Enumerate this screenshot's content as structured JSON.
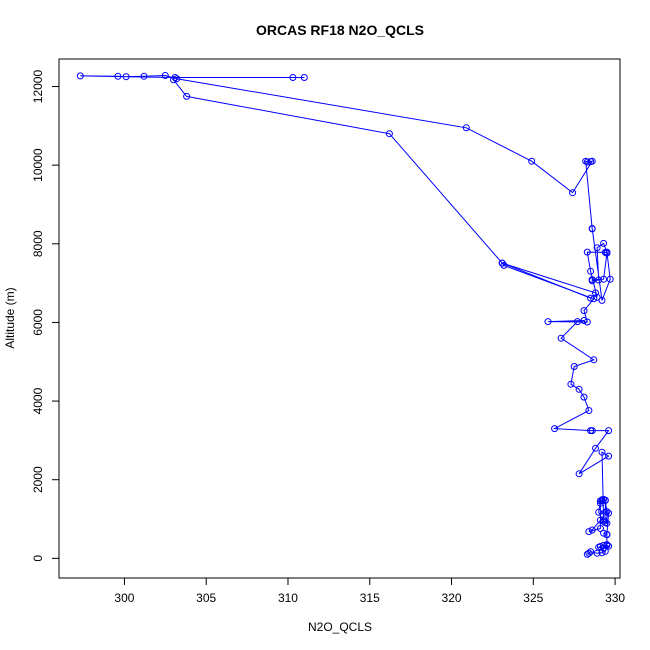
{
  "chart_data": {
    "type": "line",
    "title": "ORCAS RF18 N2O_QCLS",
    "xlabel": "N2O_QCLS",
    "ylabel": "Altitude (m)",
    "xlim": [
      296.0,
      330.3
    ],
    "ylim": [
      -500,
      12700
    ],
    "xticks": [
      300,
      305,
      310,
      315,
      320,
      325,
      330
    ],
    "yticks": [
      0,
      2000,
      4000,
      6000,
      8000,
      10000,
      12000
    ],
    "grid": false,
    "legend": "none",
    "color": "#0000ff",
    "marker": "open-circle",
    "series": [
      {
        "x": [
          328.3,
          328.4,
          328.5,
          328.9,
          329.2,
          329.4,
          329.5,
          329.6,
          329.3,
          329.0,
          329.1,
          329.3,
          329.5,
          329.5,
          329.3,
          329.5,
          329.6,
          329.4,
          329.4,
          329.3,
          329.2,
          329.1,
          329.0,
          329.3,
          329.4,
          329.5,
          329.5,
          329.4,
          329.2,
          329.1,
          329.1,
          328.4,
          328.6,
          329.1,
          329.3,
          329.2,
          329.6,
          327.8,
          328.8,
          329.6,
          328.6,
          328.5,
          326.3,
          328.4,
          328.1,
          327.8,
          327.3,
          327.5,
          328.7,
          326.7,
          327.7,
          328.1,
          325.9,
          328.3,
          328.1,
          328.7,
          323.2,
          323.1,
          328.8,
          328.9,
          328.5,
          328.3,
          329.4,
          329.5,
          329.3,
          328.6,
          328.6,
          329.0,
          328.9,
          329.3,
          329.5,
          329.7,
          329.2,
          328.6,
          328.6,
          328.2,
          328.3,
          328.5,
          328.6,
          327.4,
          324.9,
          320.9,
          303.2,
          302.5,
          301.2,
          300.1,
          299.6,
          297.3,
          303.1,
          310.3,
          311.0
        ],
        "y": [
          100,
          130,
          170,
          130,
          140,
          180,
          330,
          310,
          260,
          280,
          300,
          330,
          350,
          600,
          640,
          610,
          1150,
          1170,
          1470,
          1500,
          1490,
          1460,
          1170,
          940,
          910,
          890,
          1190,
          1480,
          1460,
          1400,
          760,
          680,
          720,
          970,
          980,
          2700,
          2600,
          2150,
          2800,
          3250,
          3250,
          3250,
          3300,
          3760,
          4100,
          4300,
          4430,
          4880,
          5050,
          5600,
          6020,
          6050,
          6020,
          6010,
          6300,
          6600,
          7450,
          7510,
          6750,
          6640,
          7300,
          7790,
          7780,
          7760,
          7100,
          7090,
          7060,
          7080,
          7900,
          8010,
          7790,
          7100,
          6560,
          8390,
          8380,
          10100,
          10080,
          10090,
          10100,
          9300,
          10100,
          10950,
          12200,
          12280,
          12260,
          12250,
          12260,
          12270,
          12230,
          12230,
          12230
        ]
      },
      {
        "x": [
          303.0,
          303.8,
          316.2,
          323.1,
          328.5
        ],
        "y": [
          12170,
          11750,
          10800,
          7510,
          6620
        ]
      }
    ]
  }
}
